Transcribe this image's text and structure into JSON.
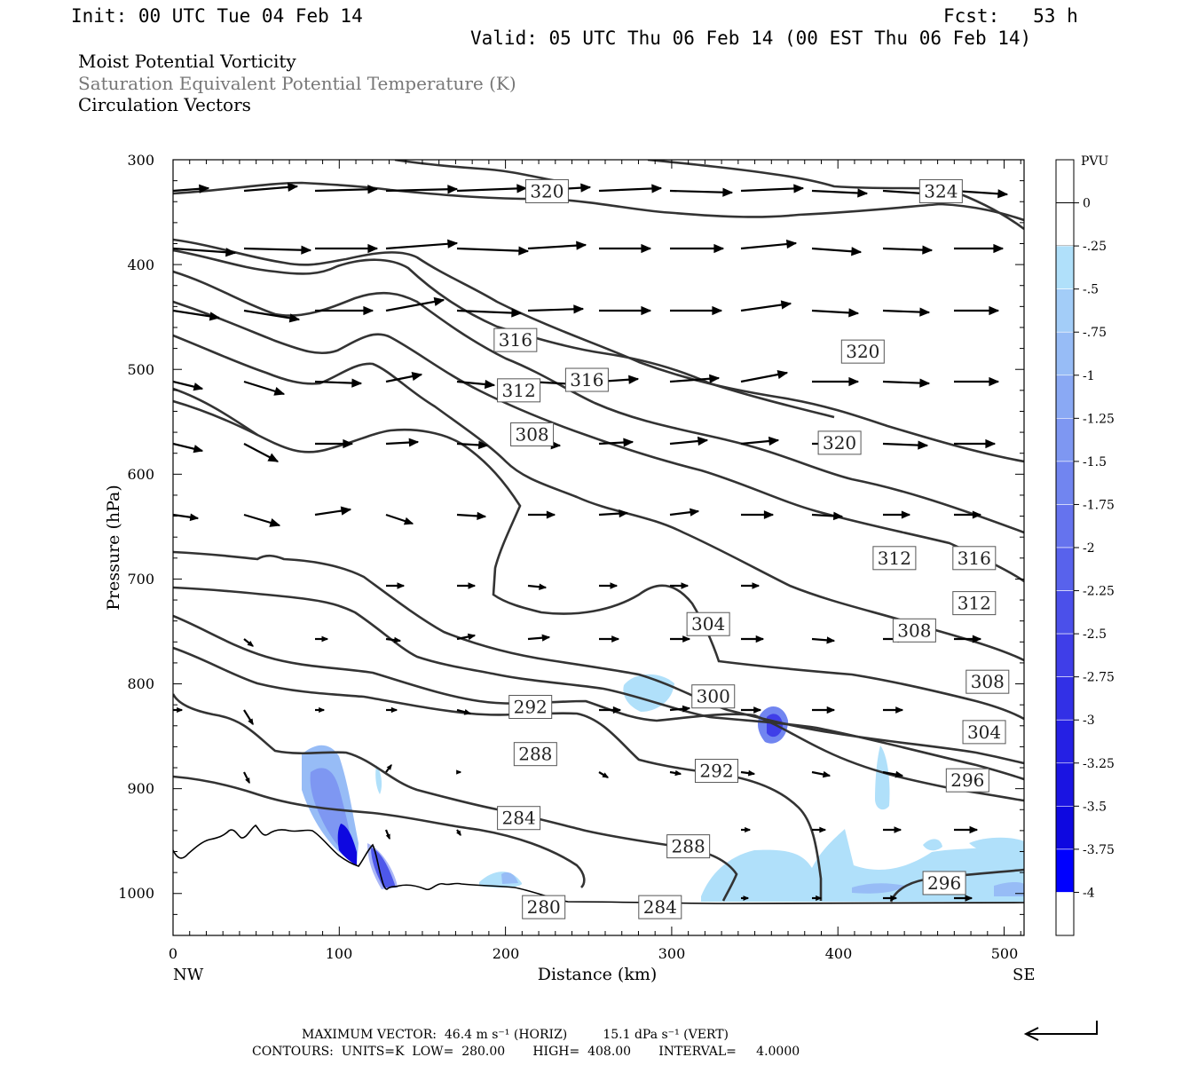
{
  "header": {
    "init": "Init: 00 UTC Tue 04 Feb 14",
    "fcst": "Fcst:   53 h",
    "valid": "Valid: 05 UTC Thu 06 Feb 14 (00 EST Thu 06 Feb 14)",
    "field1": "Moist Potential Vorticity",
    "field2": "Saturation Equivalent Potential Temperature (K)",
    "field3": "Circulation Vectors"
  },
  "footer": {
    "max_vector": "MAXIMUM VECTOR:  46.4 m s⁻¹ (HORIZ)         15.1 dPa s⁻¹ (VERT)",
    "contours": "CONTOURS:  UNITS=K  LOW=  280.00       HIGH=  408.00       INTERVAL=     4.0000"
  },
  "colors": {
    "contour": "#333333",
    "vector": "#000000",
    "pv_fill": [
      "#ffffff",
      "#b0e0fa",
      "#a3cdf8",
      "#97bcf6",
      "#8aa9f4",
      "#7e97f2",
      "#7185f0",
      "#6573ee",
      "#5862ec",
      "#4b50ea",
      "#3f3ee8",
      "#3230e6",
      "#2520e4",
      "#1a14e2",
      "#0e08e0",
      "#0000ff"
    ]
  },
  "chart_data": {
    "type": "contour",
    "xlabel": "Distance (km)",
    "ylabel": "Pressure (hPa)",
    "xlim": [
      0,
      512
    ],
    "ylim": [
      1040,
      300
    ],
    "x_ticks": [
      "0",
      "100",
      "200",
      "300",
      "400",
      "500"
    ],
    "y_ticks": [
      "300",
      "400",
      "500",
      "600",
      "700",
      "800",
      "900",
      "1000"
    ],
    "x_left_label": "NW",
    "x_right_label": "SE",
    "colorbar": {
      "unit": "PVU",
      "labels": [
        "0",
        "-.25",
        "-.5",
        "-.75",
        "-1",
        "-1.25",
        "-1.5",
        "-1.75",
        "-2",
        "-2.25",
        "-2.5",
        "-2.75",
        "-3",
        "-3.25",
        "-3.5",
        "-3.75",
        "-4"
      ]
    },
    "contour_labels": [
      {
        "text": "320",
        "x": 225,
        "p": 330
      },
      {
        "text": "324",
        "x": 462,
        "p": 330
      },
      {
        "text": "316",
        "x": 206,
        "p": 472
      },
      {
        "text": "316",
        "x": 249,
        "p": 510
      },
      {
        "text": "312",
        "x": 208,
        "p": 520
      },
      {
        "text": "320",
        "x": 415,
        "p": 483
      },
      {
        "text": "308",
        "x": 216,
        "p": 562
      },
      {
        "text": "320",
        "x": 401,
        "p": 570
      },
      {
        "text": "312",
        "x": 434,
        "p": 680
      },
      {
        "text": "316",
        "x": 482,
        "p": 680
      },
      {
        "text": "312",
        "x": 482,
        "p": 723
      },
      {
        "text": "304",
        "x": 322,
        "p": 743
      },
      {
        "text": "308",
        "x": 446,
        "p": 749
      },
      {
        "text": "308",
        "x": 490,
        "p": 798
      },
      {
        "text": "300",
        "x": 325,
        "p": 812
      },
      {
        "text": "292",
        "x": 215,
        "p": 822
      },
      {
        "text": "304",
        "x": 488,
        "p": 846
      },
      {
        "text": "288",
        "x": 218,
        "p": 867
      },
      {
        "text": "292",
        "x": 327,
        "p": 883
      },
      {
        "text": "296",
        "x": 478,
        "p": 892
      },
      {
        "text": "284",
        "x": 208,
        "p": 928
      },
      {
        "text": "288",
        "x": 310,
        "p": 955
      },
      {
        "text": "296",
        "x": 464,
        "p": 990
      },
      {
        "text": "280",
        "x": 223,
        "p": 1013
      },
      {
        "text": "284",
        "x": 293,
        "p": 1013
      }
    ]
  }
}
